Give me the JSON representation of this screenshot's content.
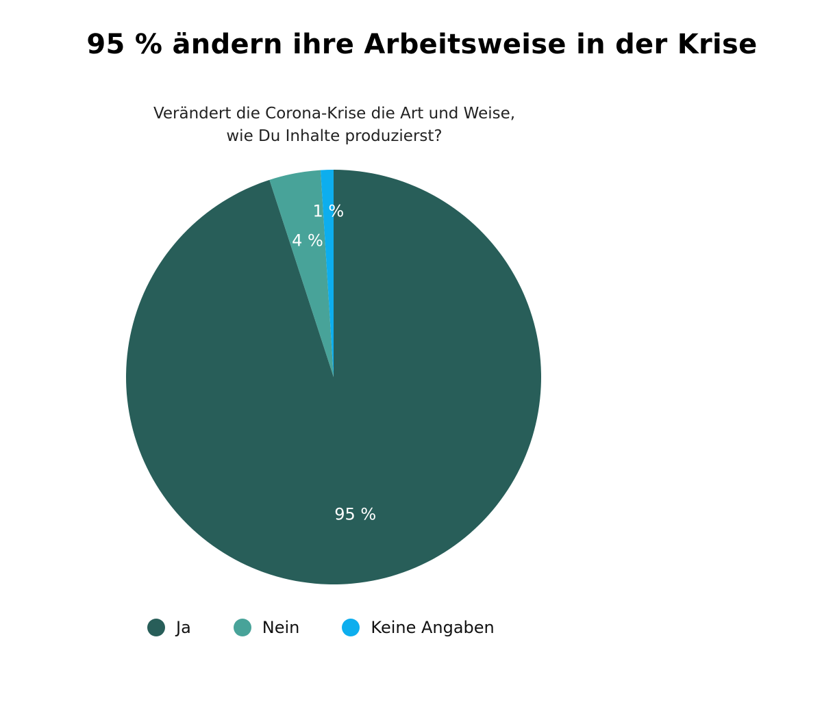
{
  "chart_data": {
    "type": "pie",
    "title": "95 % ändern ihre Arbeitsweise in der Krise",
    "subtitle_lines": [
      "Verändert die Corona-Krise die Art und Weise,",
      "wie Du Inhalte produzierst?"
    ],
    "categories": [
      "Ja",
      "Nein",
      "Keine Angaben"
    ],
    "values": [
      95,
      4,
      1
    ],
    "data_labels": [
      "95 %",
      "4 %",
      "1 %"
    ],
    "colors": [
      "#285e59",
      "#48a399",
      "#0daeee"
    ],
    "start": "top",
    "direction": "clockwise",
    "legend_position": "bottom"
  }
}
